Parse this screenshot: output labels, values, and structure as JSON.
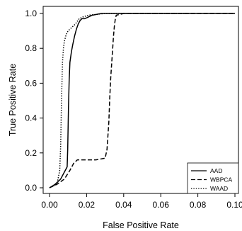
{
  "chart_data": {
    "type": "line",
    "xlabel": "False Positive Rate",
    "ylabel": "True Positive Rate",
    "xlim": [
      0,
      0.1
    ],
    "ylim": [
      0,
      1
    ],
    "x_ticks": [
      "0.00",
      "0.02",
      "0.04",
      "0.06",
      "0.08",
      "0.10"
    ],
    "y_ticks": [
      "0.0",
      "0.2",
      "0.4",
      "0.6",
      "0.8",
      "1.0"
    ],
    "grid": false,
    "legend": {
      "position": "bottom-right",
      "entries": [
        "AAD",
        "WBPCA",
        "WAAD"
      ]
    },
    "series": [
      {
        "name": "AAD",
        "dash": "solid",
        "x": [
          0.0,
          0.003,
          0.006,
          0.008,
          0.0095,
          0.0098,
          0.0102,
          0.0106,
          0.011,
          0.0118,
          0.0125,
          0.0135,
          0.0145,
          0.0155,
          0.0165,
          0.0175,
          0.019,
          0.021,
          0.023,
          0.028,
          0.1
        ],
        "y": [
          0.0,
          0.02,
          0.05,
          0.09,
          0.12,
          0.22,
          0.45,
          0.62,
          0.72,
          0.78,
          0.82,
          0.87,
          0.91,
          0.94,
          0.96,
          0.97,
          0.97,
          0.98,
          0.99,
          1.0,
          1.0
        ]
      },
      {
        "name": "WBPCA",
        "dash": "dashed",
        "x": [
          0.0,
          0.004,
          0.008,
          0.011,
          0.013,
          0.015,
          0.02,
          0.025,
          0.03,
          0.031,
          0.032,
          0.0325,
          0.033,
          0.0335,
          0.034,
          0.0345,
          0.035,
          0.0355,
          0.036,
          0.04,
          0.1
        ],
        "y": [
          0.0,
          0.02,
          0.05,
          0.1,
          0.14,
          0.16,
          0.16,
          0.16,
          0.17,
          0.22,
          0.38,
          0.52,
          0.63,
          0.71,
          0.79,
          0.87,
          0.93,
          0.97,
          0.99,
          1.0,
          1.0
        ]
      },
      {
        "name": "WAAD",
        "dash": "dotted",
        "x": [
          0.0,
          0.004,
          0.0055,
          0.006,
          0.0065,
          0.007,
          0.0075,
          0.008,
          0.0085,
          0.009,
          0.01,
          0.012,
          0.014,
          0.016,
          0.018,
          0.021,
          0.03,
          0.075
        ],
        "y": [
          0.0,
          0.02,
          0.1,
          0.24,
          0.52,
          0.72,
          0.8,
          0.84,
          0.86,
          0.88,
          0.9,
          0.92,
          0.94,
          0.97,
          0.98,
          0.99,
          1.0,
          1.0
        ]
      }
    ]
  }
}
